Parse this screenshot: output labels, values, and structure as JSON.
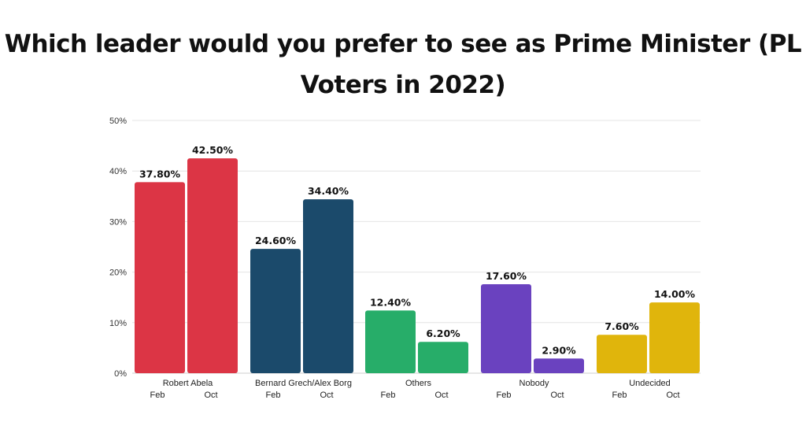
{
  "title": "Which leader would you prefer to see as Prime Minister (PL Voters in 2022)",
  "chart_data": {
    "type": "bar",
    "title": "Which leader would you prefer to see as Prime Minister (PL Voters in 2022)",
    "categories": [
      "Robert Abela",
      "Bernard Grech/Alex Borg",
      "Others",
      "Nobody",
      "Undecided"
    ],
    "sub_labels": [
      "Feb",
      "Oct"
    ],
    "series": [
      {
        "name": "Feb",
        "values": [
          37.8,
          24.6,
          12.4,
          17.6,
          7.6
        ]
      },
      {
        "name": "Oct",
        "values": [
          42.5,
          34.4,
          6.2,
          2.9,
          14.0
        ]
      }
    ],
    "value_labels": [
      [
        "37.80%",
        "42.50%"
      ],
      [
        "24.60%",
        "34.40%"
      ],
      [
        "12.40%",
        "6.20%"
      ],
      [
        "17.60%",
        "2.90%"
      ],
      [
        "7.60%",
        "14.00%"
      ]
    ],
    "category_colors": [
      "#dc3545",
      "#1b4a6b",
      "#27ad69",
      "#6a42bf",
      "#e0b50c"
    ],
    "ylim": [
      0,
      50
    ],
    "yticks": [
      0,
      10,
      20,
      30,
      40,
      50
    ],
    "ytick_labels": [
      "0%",
      "10%",
      "20%",
      "30%",
      "40%",
      "50%"
    ],
    "grid": true,
    "xlabel": "",
    "ylabel": ""
  }
}
